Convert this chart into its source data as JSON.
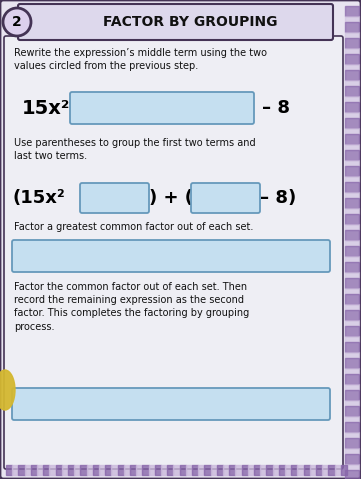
{
  "title": "FACTOR BY GROUPING",
  "step_number": "2",
  "bg_outer": "#c8b8d8",
  "bg_card": "#e8e4f0",
  "bg_content": "#eeeef4",
  "header_bg": "#ddd8ec",
  "box_fill": "#c5dff0",
  "box_border": "#6699bb",
  "title_color": "#111111",
  "text_color": "#111111",
  "circle_fill": "#ddd0ee",
  "circle_border": "#7766aa",
  "border_dark": "#443355",
  "stripe_color1": "#8866aa",
  "stripe_color2": "#ccbbdd",
  "yellow_fill": "#d4b830",
  "section1_text": "Rewrite the expression’s middle term using the two\nvalues circled from the previous step.",
  "expr1_left": "15x²",
  "expr1_right": "– 8",
  "section2_text": "Use parentheses to group the first two terms and\nlast two terms.",
  "expr2_left": "(15x²",
  "expr2_mid": ") + (",
  "expr2_right": "– 8)",
  "section3_text": "Factor a greatest common factor out of each set.",
  "section4_text": "Factor the common factor out of each set. Then\nrecord the remaining expression as the second\nfactor. This completes the factoring by grouping\nprocess."
}
